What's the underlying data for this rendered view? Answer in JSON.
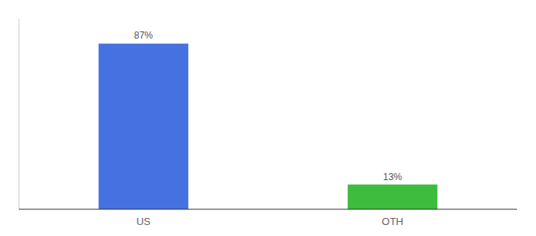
{
  "chart_data": {
    "type": "bar",
    "categories": [
      "US",
      "OTH"
    ],
    "values": [
      87,
      13
    ],
    "value_labels": [
      "87%",
      "13%"
    ],
    "colors": [
      "#4472e0",
      "#3dbc3d"
    ],
    "ylim": [
      0,
      100
    ],
    "data_labels": true,
    "tick_labels": "x",
    "grid": false
  }
}
